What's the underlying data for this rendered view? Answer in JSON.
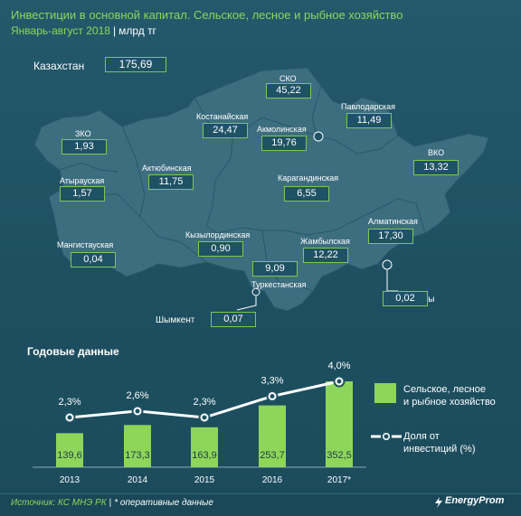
{
  "header": {
    "title": "Инвестиции в основной капитал. Сельское, лесное и рыбное хозяйство",
    "period": "Январь-август 2018",
    "separator": "|",
    "unit": "млрд тг"
  },
  "map": {
    "total": {
      "label": "Казахстан",
      "value": "175,69"
    },
    "regions": [
      {
        "name": "СКО",
        "value": "45,22"
      },
      {
        "name": "Павлодарская",
        "value": "11,49"
      },
      {
        "name": "Костанайская",
        "value": "24,47"
      },
      {
        "name": "Акмолинская",
        "value": "19,76"
      },
      {
        "name": "ЗКО",
        "value": "1,93"
      },
      {
        "name": "ВКО",
        "value": "13,32"
      },
      {
        "name": "Актюбинская",
        "value": "11,75"
      },
      {
        "name": "Атырауская",
        "value": "1,57"
      },
      {
        "name": "Карагандинская",
        "value": "6,55"
      },
      {
        "name": "Алматинская",
        "value": "17,30"
      },
      {
        "name": "Мангистауская",
        "value": "0,04"
      },
      {
        "name": "Кызылординская",
        "value": "0,90"
      },
      {
        "name": "Жамбылская",
        "value": "12,22"
      },
      {
        "name": "Туркестанская",
        "value": "9,09"
      },
      {
        "name": "Алматы",
        "value": "0,02"
      },
      {
        "name": "Шымкент",
        "value": "0,07"
      }
    ]
  },
  "annual": {
    "section_title": "Годовые данные",
    "legend_bar": [
      "Сельское, лесное",
      "и рыбное хозяйство"
    ],
    "legend_line": [
      "Доля от",
      "инвестиций (%)"
    ]
  },
  "chart_data": {
    "type": "bar",
    "categories": [
      "2013",
      "2014",
      "2015",
      "2016",
      "2017*"
    ],
    "series": [
      {
        "name": "Сельское, лесное и рыбное хозяйство",
        "type": "bar",
        "values": [
          139.6,
          173.3,
          163.9,
          253.7,
          352.5
        ],
        "labels": [
          "139,6",
          "173,3",
          "163,9",
          "253,7",
          "352,5"
        ],
        "color": "#8ed65a"
      },
      {
        "name": "Доля от инвестиций (%)",
        "type": "line",
        "values": [
          2.3,
          2.6,
          2.3,
          3.3,
          4.0
        ],
        "labels": [
          "2,3%",
          "2,6%",
          "2,3%",
          "3,3%",
          "4,0%"
        ],
        "color": "#ffffff"
      }
    ],
    "title": "Годовые данные",
    "xlabel": "",
    "ylabel": ""
  },
  "footer": {
    "source": "Источник: КС МНЭ РК",
    "separator": "|",
    "note": "* оперативные данные",
    "logo": "EnergyProm"
  },
  "colors": {
    "background": "#1f5264",
    "accent": "#8ed65a",
    "map_fill": "#3d6e80",
    "border": "#7cc94f"
  }
}
